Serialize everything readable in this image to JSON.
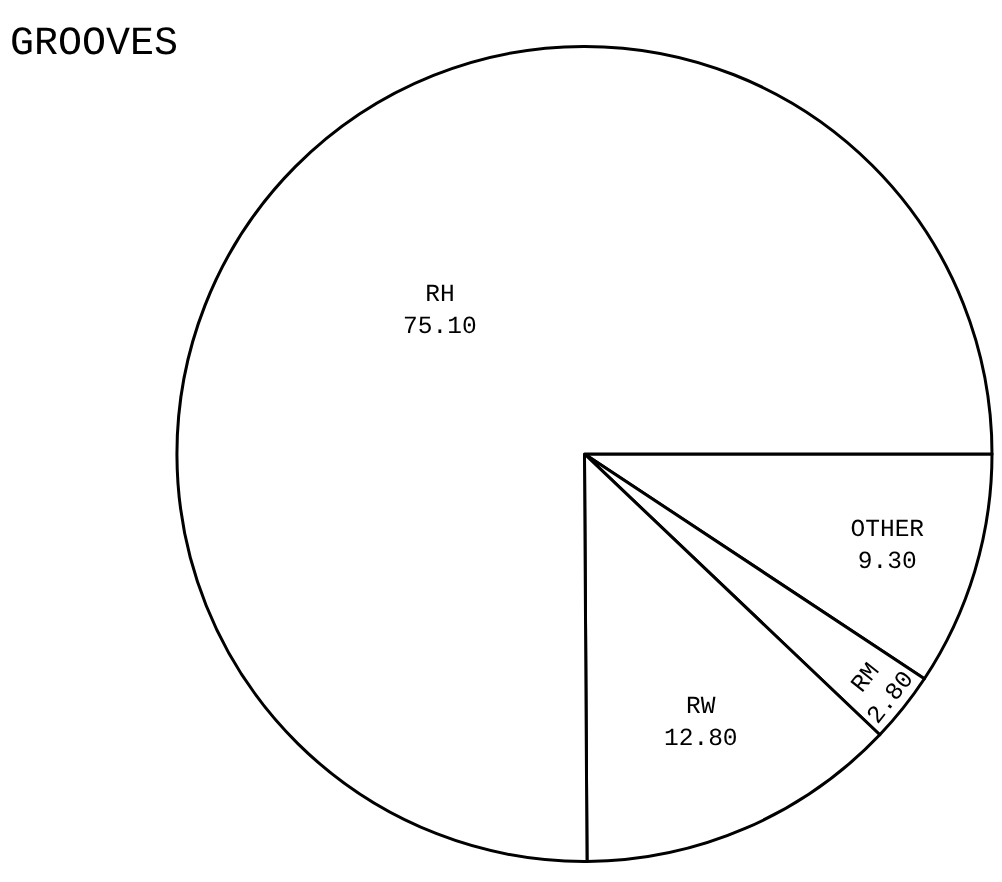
{
  "chart_data": {
    "type": "pie",
    "title": "GROOVES",
    "categories": [
      "OTHER",
      "RM",
      "RW",
      "RH"
    ],
    "values": [
      9.3,
      2.8,
      12.8,
      75.1
    ],
    "value_labels": [
      "9.30",
      "2.80",
      "12.80",
      "75.10"
    ],
    "colors": [
      "#ffffff",
      "#ffffff",
      "#ffffff",
      "#ffffff"
    ],
    "legend": false
  }
}
